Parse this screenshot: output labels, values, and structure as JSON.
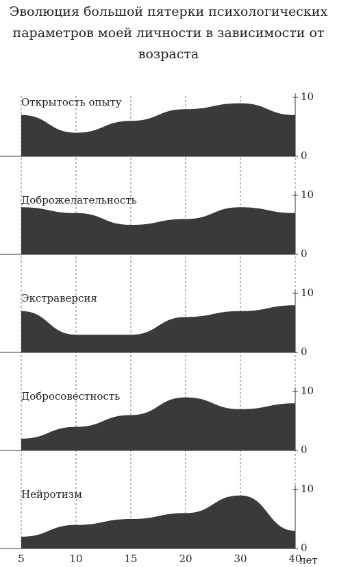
{
  "chart_data": {
    "type": "area",
    "title": "Эволюция большой пятерки психологических параметров моей личности в зависимости от возраста",
    "categories": [
      "5",
      "10",
      "15",
      "20",
      "30",
      "40"
    ],
    "x_label": "лет",
    "ylim": [
      0,
      10
    ],
    "yticks": [
      0,
      10
    ],
    "color": "#3a3a3a",
    "series": [
      {
        "name": "Открытость опыту",
        "values": [
          7,
          4,
          6,
          8,
          9,
          7
        ]
      },
      {
        "name": "Доброжелательность",
        "values": [
          8,
          7,
          5,
          6,
          8,
          7
        ]
      },
      {
        "name": "Экстраверсия",
        "values": [
          7,
          3,
          3,
          6,
          7,
          8
        ]
      },
      {
        "name": "Добросовестность",
        "values": [
          2,
          4,
          6,
          9,
          7,
          8
        ]
      },
      {
        "name": "Нейротизм",
        "values": [
          2,
          4,
          5,
          6,
          9,
          3
        ]
      }
    ]
  }
}
